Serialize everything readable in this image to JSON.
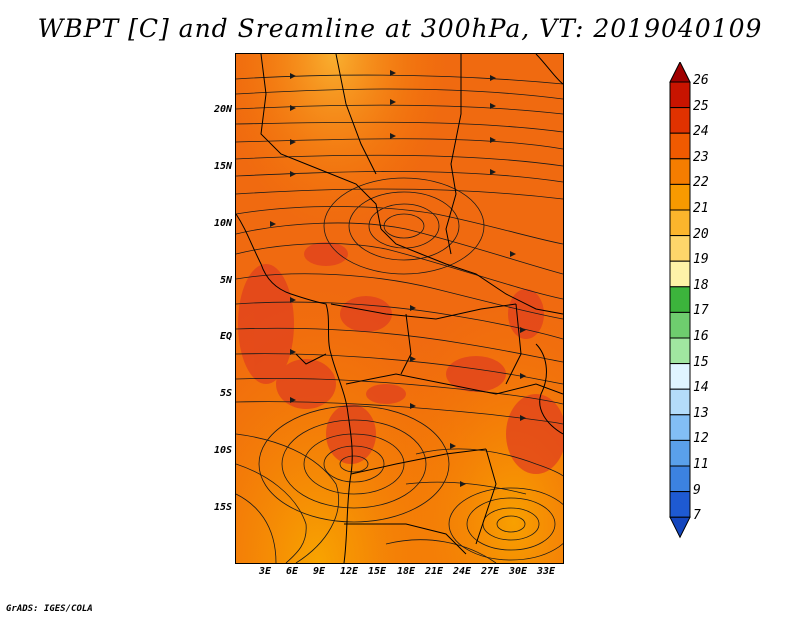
{
  "title": "WBPT [C] and Sreamline at 300hPa, VT: 2019040109",
  "credit": "GrADS: IGES/COLA",
  "map": {
    "lat_labels": [
      "20N",
      "15N",
      "10N",
      "5N",
      "EQ",
      "5S",
      "10S",
      "15S"
    ],
    "lon_labels": [
      "3E",
      "6E",
      "9E",
      "12E",
      "15E",
      "18E",
      "21E",
      "24E",
      "27E",
      "30E",
      "33E"
    ],
    "variable": "Wet bulb potential temperature with streamlines",
    "level": "300hPa"
  },
  "colorbar": {
    "levels": [
      "26",
      "25",
      "24",
      "23",
      "22",
      "21",
      "20",
      "19",
      "18",
      "17",
      "16",
      "15",
      "14",
      "13",
      "12",
      "11",
      "9",
      "7"
    ],
    "colors": [
      "#a00000",
      "#c81400",
      "#e03200",
      "#f05a00",
      "#f57d00",
      "#f89a00",
      "#fbb52c",
      "#fdd66a",
      "#fef3a8",
      "#3cb43c",
      "#6ecd6e",
      "#a0e6a0",
      "#dff5ff",
      "#b4dcfa",
      "#82bef5",
      "#5aa0eb",
      "#3c82e1",
      "#1e5ad2",
      "#1446be"
    ]
  }
}
